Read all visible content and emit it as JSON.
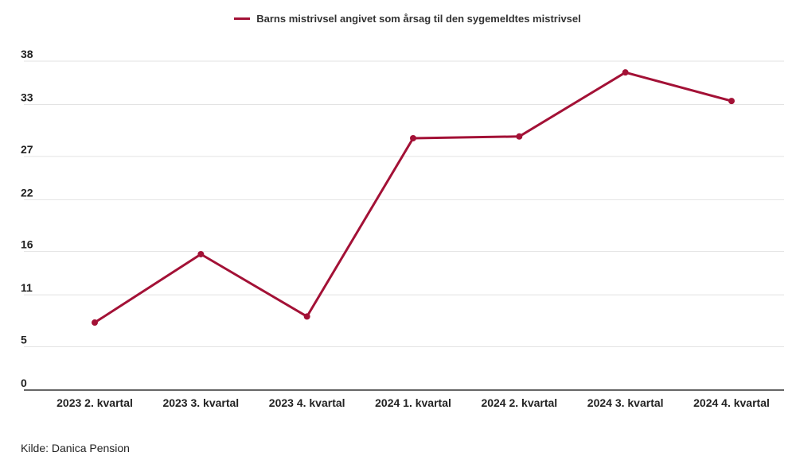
{
  "colors": {
    "series": "#a31136",
    "grid": "#e3e3e3",
    "axis": "#333333"
  },
  "source": "Kilde: Danica Pension",
  "chart_data": {
    "type": "line",
    "categories": [
      "2023 2. kvartal",
      "2023 3. kvartal",
      "2023 4. kvartal",
      "2024 1. kvartal",
      "2024 2. kvartal",
      "2024 3. kvartal",
      "2024 4. kvartal"
    ],
    "series": [
      {
        "name": "Barns mistrivsel angivet som årsag til den sygemeldtes mistrivsel",
        "values": [
          7.8,
          15.7,
          8.5,
          29.1,
          29.3,
          36.7,
          33.4
        ]
      }
    ],
    "yticks": [
      "0",
      "5",
      "11",
      "16",
      "22",
      "27",
      "33",
      "38"
    ],
    "ylim": [
      0,
      38
    ],
    "grid": true,
    "legend": "top-center"
  }
}
